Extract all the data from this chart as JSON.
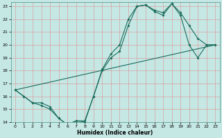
{
  "xlabel": "Humidex (Indice chaleur)",
  "xlim": [
    -0.5,
    23.5
  ],
  "ylim": [
    14,
    23.3
  ],
  "yticks": [
    14,
    15,
    16,
    17,
    18,
    19,
    20,
    21,
    22,
    23
  ],
  "xticks": [
    0,
    1,
    2,
    3,
    4,
    5,
    6,
    7,
    8,
    9,
    10,
    11,
    12,
    13,
    14,
    15,
    16,
    17,
    18,
    19,
    20,
    21,
    22,
    23
  ],
  "bg_color": "#c5e8e5",
  "grid_color": "#d9a0a0",
  "line_color": "#1a6b5a",
  "line1_x": [
    0,
    1,
    2,
    3,
    4,
    5,
    6,
    7,
    8,
    9,
    10,
    11,
    12,
    13,
    14,
    15,
    16,
    17,
    18,
    19,
    20,
    21,
    22,
    23
  ],
  "line1_y": [
    16.5,
    16.0,
    15.5,
    15.5,
    15.2,
    14.3,
    13.8,
    14.1,
    14.1,
    16.0,
    18.0,
    19.0,
    19.5,
    21.5,
    23.0,
    23.1,
    22.7,
    22.5,
    23.2,
    22.5,
    21.5,
    20.5,
    20.0,
    20.0
  ],
  "line2_x": [
    0,
    1,
    2,
    3,
    4,
    5,
    6,
    7,
    8,
    9,
    10,
    11,
    12,
    13,
    14,
    15,
    16,
    17,
    18,
    19,
    20,
    21,
    22,
    23
  ],
  "line2_y": [
    16.5,
    16.0,
    15.5,
    15.3,
    15.0,
    14.3,
    13.8,
    14.1,
    14.0,
    16.0,
    18.1,
    19.3,
    20.0,
    22.0,
    23.0,
    23.1,
    22.6,
    22.3,
    23.2,
    22.3,
    20.0,
    19.0,
    20.0,
    20.0
  ],
  "line3_x": [
    0,
    23
  ],
  "line3_y": [
    16.5,
    20.0
  ]
}
